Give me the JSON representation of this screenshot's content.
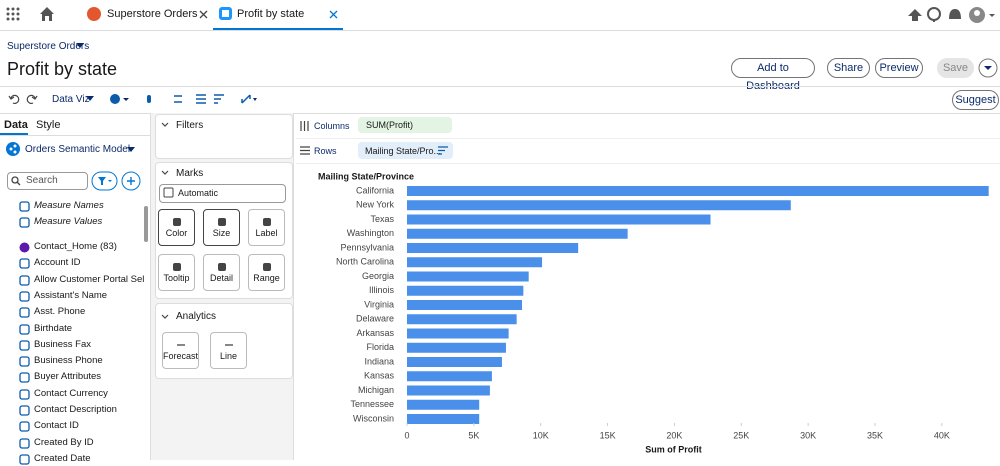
{
  "tabs": [
    "Superstore Orders",
    "Profit by state"
  ],
  "header": {
    "breadcrumb": "Superstore Orders",
    "title": "Profit by state",
    "buttons": [
      "Add to Dashboard",
      "Share",
      "Preview",
      "Save"
    ]
  },
  "toolbar": {
    "mode": "Data Viz",
    "suggest": "Suggest"
  },
  "data_panel": {
    "tabs": [
      "Data",
      "Style"
    ],
    "model": "Orders Semantic Model",
    "search_placeholder": "Search",
    "fields": [
      "Measure Names",
      "Measure Values",
      "Contact_Home (83)",
      "Account ID",
      "Allow Customer Portal Self-...",
      "Assistant's Name",
      "Asst. Phone",
      "Birthdate",
      "Business Fax",
      "Business Phone",
      "Buyer Attributes",
      "Contact Currency",
      "Contact Description",
      "Contact ID",
      "Created By ID",
      "Created Date"
    ]
  },
  "filters": {
    "title": "Filters"
  },
  "marks": {
    "title": "Marks",
    "type": "Automatic",
    "buttons": [
      "Color",
      "Size",
      "Label",
      "Tooltip",
      "Detail",
      "Range"
    ]
  },
  "analytics": {
    "title": "Analytics",
    "buttons": [
      "Forecast",
      "Line"
    ]
  },
  "shelves": {
    "columns": {
      "label": "Columns",
      "pill": "SUM(Profit)"
    },
    "rows": {
      "label": "Rows",
      "pill": "Mailing State/Pro..."
    }
  },
  "chart_data": {
    "type": "bar",
    "orientation": "horizontal",
    "color": "#4a8fea",
    "category_header": "Mailing State/Province",
    "x_label": "Sum of Profit",
    "categories": [
      "California",
      "New York",
      "Texas",
      "Washington",
      "Pennsylvania",
      "North Carolina",
      "Georgia",
      "Illinois",
      "Virginia",
      "Delaware",
      "Arkansas",
      "Florida",
      "Indiana",
      "Kansas",
      "Michigan",
      "Tennessee",
      "Wisconsin"
    ],
    "values": [
      43500,
      28700,
      22700,
      16500,
      12800,
      10100,
      9100,
      8700,
      8600,
      8200,
      7600,
      7400,
      7100,
      6350,
      6200,
      5400,
      5400
    ],
    "xlim": [
      0,
      43600
    ],
    "xticks": [
      0,
      {
        "value": 5000,
        "label": "5K"
      },
      {
        "value": 10000,
        "label": "10K"
      },
      {
        "value": 15000,
        "label": "15K"
      },
      {
        "value": 20000,
        "label": "20K"
      },
      {
        "value": 25000,
        "label": "25K"
      },
      {
        "value": 30000,
        "label": "30K"
      },
      {
        "value": 35000,
        "label": "35K"
      },
      {
        "value": 40000,
        "label": "40K"
      }
    ]
  }
}
